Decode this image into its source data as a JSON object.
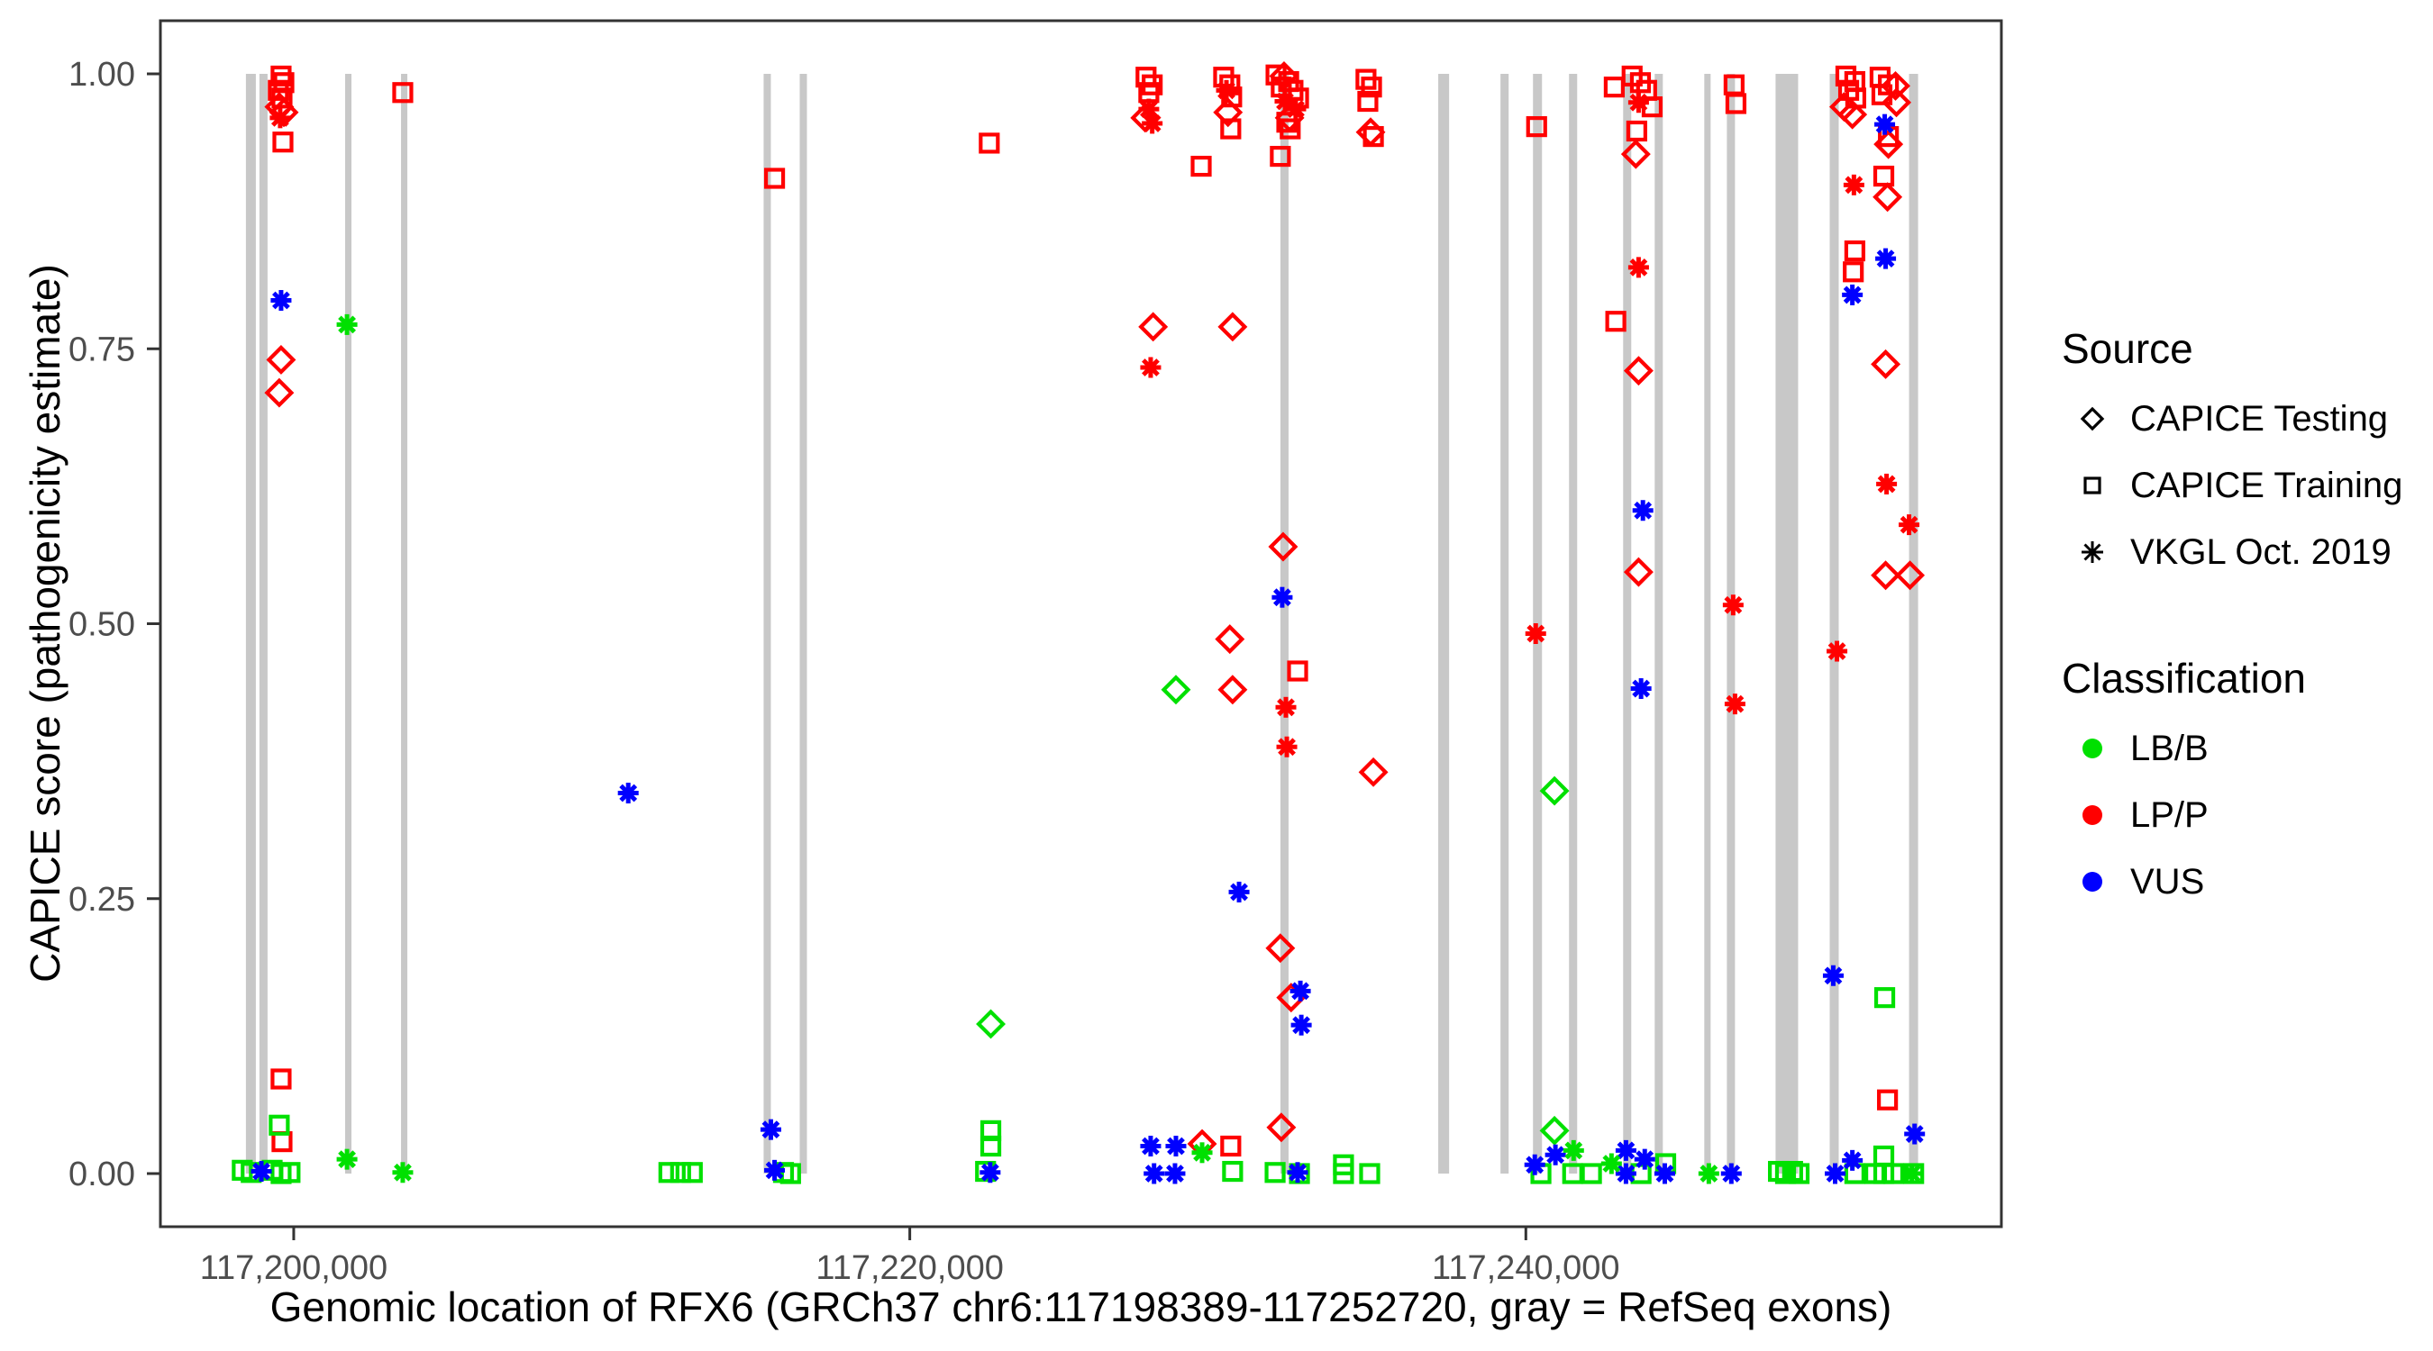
{
  "figure": {
    "x_axis_title": "Genomic location of RFX6 (GRCh37 chr6:117198389-117252720, gray = RefSeq exons)",
    "y_axis_title": "CAPICE score (pathogenicity estimate)"
  },
  "legend": {
    "source": {
      "title": "Source",
      "items": [
        {
          "label": "CAPICE Testing",
          "shape": "diamond-icon"
        },
        {
          "label": "CAPICE Training",
          "shape": "square-icon"
        },
        {
          "label": "VKGL Oct. 2019",
          "shape": "asterisk-icon"
        }
      ]
    },
    "classification": {
      "title": "Classification",
      "items": [
        {
          "label": "LB/B",
          "color": "#00E000"
        },
        {
          "label": "LP/P",
          "color": "#FF0000"
        },
        {
          "label": "VUS",
          "color": "#0000FF"
        }
      ]
    }
  },
  "chart_data": {
    "type": "scatter",
    "title": "",
    "xlabel": "Genomic location of RFX6 (GRCh37 chr6:117198389-117252720, gray = RefSeq exons)",
    "ylabel": "CAPICE score (pathogenicity estimate)",
    "x_domain": [
      117195672,
      117255437
    ],
    "y_domain": [
      0,
      1
    ],
    "x_ticks": [
      {
        "value": 117200000,
        "label": "117,200,000"
      },
      {
        "value": 117220000,
        "label": "117,220,000"
      },
      {
        "value": 117240000,
        "label": "117,240,000"
      }
    ],
    "y_ticks": [
      {
        "value": 0.0,
        "label": "0.00"
      },
      {
        "value": 0.25,
        "label": "0.25"
      },
      {
        "value": 0.5,
        "label": "0.50"
      },
      {
        "value": 0.75,
        "label": "0.75"
      },
      {
        "value": 1.0,
        "label": "1.00"
      }
    ],
    "grid": false,
    "legend_position": "right",
    "class_colors": {
      "LB/B": "#00E000",
      "LP/P": "#FF0000",
      "VUS": "#0000FF"
    },
    "exon_color": "#C8C8C8",
    "exons": [
      [
        117198448,
        117198770
      ],
      [
        117198887,
        117199151
      ],
      [
        117201669,
        117201874
      ],
      [
        117203484,
        117203689
      ],
      [
        117215255,
        117215490
      ],
      [
        117216427,
        117216661
      ],
      [
        117232032,
        117232296
      ],
      [
        117237156,
        117237508
      ],
      [
        117239177,
        117239441
      ],
      [
        117240231,
        117240524
      ],
      [
        117241402,
        117241666
      ],
      [
        117243158,
        117243422
      ],
      [
        117244183,
        117244447
      ],
      [
        117245793,
        117245998
      ],
      [
        117246526,
        117246789
      ],
      [
        117248107,
        117248839
      ],
      [
        117249864,
        117250157
      ],
      [
        117252440,
        117252733
      ]
    ],
    "series": [
      {
        "name": "CAPICE Training",
        "shape": "square",
        "points": [
          [
            117199590,
            0.998,
            "LP/P"
          ],
          [
            117199680,
            0.992,
            "LP/P"
          ],
          [
            117199500,
            0.985,
            "LP/P"
          ],
          [
            117199620,
            0.978,
            "LP/P"
          ],
          [
            117199650,
            0.938,
            "LP/P"
          ],
          [
            117199590,
            0.086,
            "LP/P"
          ],
          [
            117199620,
            0.029,
            "LP/P"
          ],
          [
            117203540,
            0.983,
            "LP/P"
          ],
          [
            117215610,
            0.905,
            "LP/P"
          ],
          [
            117222580,
            0.937,
            "LP/P"
          ],
          [
            117227670,
            0.997,
            "LP/P"
          ],
          [
            117227870,
            0.99,
            "LP/P"
          ],
          [
            117227760,
            0.983,
            "LP/P"
          ],
          [
            117229460,
            0.916,
            "LP/P"
          ],
          [
            117230190,
            0.997,
            "LP/P"
          ],
          [
            117230390,
            0.99,
            "LP/P"
          ],
          [
            117230450,
            0.979,
            "LP/P"
          ],
          [
            117230420,
            0.95,
            "LP/P"
          ],
          [
            117230420,
            0.025,
            "LP/P"
          ],
          [
            117231890,
            0.999,
            "LP/P"
          ],
          [
            117232300,
            0.993,
            "LP/P"
          ],
          [
            117232060,
            0.988,
            "LP/P"
          ],
          [
            117232440,
            0.985,
            "LP/P"
          ],
          [
            117232620,
            0.978,
            "LP/P"
          ],
          [
            117232240,
            0.956,
            "LP/P"
          ],
          [
            117232350,
            0.95,
            "LP/P"
          ],
          [
            117232030,
            0.925,
            "LP/P"
          ],
          [
            117232590,
            0.457,
            "LP/P"
          ],
          [
            117234810,
            0.995,
            "LP/P"
          ],
          [
            117234990,
            0.988,
            "LP/P"
          ],
          [
            117234870,
            0.975,
            "LP/P"
          ],
          [
            117235050,
            0.943,
            "LP/P"
          ],
          [
            117240350,
            0.952,
            "LP/P"
          ],
          [
            117242870,
            0.988,
            "LP/P"
          ],
          [
            117243450,
            0.998,
            "LP/P"
          ],
          [
            117243720,
            0.992,
            "LP/P"
          ],
          [
            117243920,
            0.985,
            "LP/P"
          ],
          [
            117244100,
            0.97,
            "LP/P"
          ],
          [
            117243600,
            0.948,
            "LP/P"
          ],
          [
            117242920,
            0.775,
            "LP/P"
          ],
          [
            117246760,
            0.99,
            "LP/P"
          ],
          [
            117246820,
            0.973,
            "LP/P"
          ],
          [
            117250390,
            0.998,
            "LP/P"
          ],
          [
            117250680,
            0.993,
            "LP/P"
          ],
          [
            117250480,
            0.985,
            "LP/P"
          ],
          [
            117250710,
            0.978,
            "LP/P"
          ],
          [
            117250680,
            0.839,
            "LP/P"
          ],
          [
            117250630,
            0.82,
            "LP/P"
          ],
          [
            117251500,
            0.997,
            "LP/P"
          ],
          [
            117251770,
            0.99,
            "LP/P"
          ],
          [
            117251560,
            0.981,
            "LP/P"
          ],
          [
            117251770,
            0.943,
            "LP/P"
          ],
          [
            117251620,
            0.907,
            "LP/P"
          ],
          [
            117251740,
            0.067,
            "LP/P"
          ],
          [
            117199530,
            0.044,
            "LB/B"
          ],
          [
            117198330,
            0.003,
            "LB/B"
          ],
          [
            117198620,
            0.001,
            "LB/B"
          ],
          [
            117199300,
            0.003,
            "LB/B"
          ],
          [
            117199590,
            0.0,
            "LB/B"
          ],
          [
            117199880,
            0.001,
            "LB/B"
          ],
          [
            117212180,
            0.001,
            "LB/B"
          ],
          [
            117212560,
            0.001,
            "LB/B"
          ],
          [
            117212940,
            0.001,
            "LB/B"
          ],
          [
            117215900,
            0.001,
            "LB/B"
          ],
          [
            117216130,
            0.0,
            "LB/B"
          ],
          [
            117222630,
            0.039,
            "LB/B"
          ],
          [
            117222630,
            0.025,
            "LB/B"
          ],
          [
            117222460,
            0.002,
            "LB/B"
          ],
          [
            117230480,
            0.002,
            "LB/B"
          ],
          [
            117231860,
            0.001,
            "LB/B"
          ],
          [
            117232650,
            0.0,
            "LB/B"
          ],
          [
            117234080,
            0.008,
            "LB/B"
          ],
          [
            117234080,
            0.0,
            "LB/B"
          ],
          [
            117234930,
            0.0,
            "LB/B"
          ],
          [
            117240490,
            0.0,
            "LB/B"
          ],
          [
            117241520,
            0.0,
            "LB/B"
          ],
          [
            117242130,
            0.0,
            "LB/B"
          ],
          [
            117243740,
            0.0,
            "LB/B"
          ],
          [
            117244540,
            0.009,
            "LB/B"
          ],
          [
            117248200,
            0.002,
            "LB/B"
          ],
          [
            117248430,
            0.0,
            "LB/B"
          ],
          [
            117248660,
            0.002,
            "LB/B"
          ],
          [
            117248870,
            0.0,
            "LB/B"
          ],
          [
            117250680,
            0.0,
            "LB/B"
          ],
          [
            117251620,
            0.016,
            "LB/B"
          ],
          [
            117251620,
            0.0,
            "LB/B"
          ],
          [
            117251330,
            0.0,
            "LB/B"
          ],
          [
            117251940,
            0.0,
            "LB/B"
          ],
          [
            117252590,
            0.0,
            "LB/B"
          ],
          [
            117251650,
            0.16,
            "LB/B"
          ]
        ]
      },
      {
        "name": "CAPICE Testing",
        "shape": "diamond",
        "points": [
          [
            117199530,
            0.97,
            "LP/P"
          ],
          [
            117199680,
            0.965,
            "LP/P"
          ],
          [
            117199590,
            0.74,
            "LP/P"
          ],
          [
            117199530,
            0.71,
            "LP/P"
          ],
          [
            117227640,
            0.96,
            "LP/P"
          ],
          [
            117227900,
            0.77,
            "LP/P"
          ],
          [
            117229490,
            0.027,
            "LP/P"
          ],
          [
            117230330,
            0.965,
            "LP/P"
          ],
          [
            117230480,
            0.77,
            "LP/P"
          ],
          [
            117230390,
            0.486,
            "LP/P"
          ],
          [
            117230480,
            0.44,
            "LP/P"
          ],
          [
            117232150,
            0.998,
            "LP/P"
          ],
          [
            117232330,
            0.96,
            "LP/P"
          ],
          [
            117232120,
            0.57,
            "LP/P"
          ],
          [
            117232030,
            0.205,
            "LP/P"
          ],
          [
            117232380,
            0.16,
            "LP/P"
          ],
          [
            117232060,
            0.042,
            "LP/P"
          ],
          [
            117234960,
            0.947,
            "LP/P"
          ],
          [
            117235050,
            0.365,
            "LP/P"
          ],
          [
            117243570,
            0.927,
            "LP/P"
          ],
          [
            117243660,
            0.73,
            "LP/P"
          ],
          [
            117243660,
            0.547,
            "LP/P"
          ],
          [
            117250600,
            0.963,
            "LP/P"
          ],
          [
            117250330,
            0.97,
            "LP/P"
          ],
          [
            117252000,
            0.989,
            "LP/P"
          ],
          [
            117252030,
            0.974,
            "LP/P"
          ],
          [
            117251770,
            0.936,
            "LP/P"
          ],
          [
            117251740,
            0.888,
            "LP/P"
          ],
          [
            117251680,
            0.736,
            "LP/P"
          ],
          [
            117251680,
            0.544,
            "LP/P"
          ],
          [
            117252470,
            0.544,
            "LP/P"
          ],
          [
            117228640,
            0.44,
            "LB/B"
          ],
          [
            117222630,
            0.136,
            "LB/B"
          ],
          [
            117240930,
            0.348,
            "LB/B"
          ],
          [
            117240930,
            0.039,
            "LB/B"
          ]
        ]
      },
      {
        "name": "VKGL Oct. 2019",
        "shape": "asterisk",
        "points": [
          [
            117199560,
            0.96,
            "LP/P"
          ],
          [
            117227760,
            0.968,
            "LP/P"
          ],
          [
            117227870,
            0.955,
            "LP/P"
          ],
          [
            117227820,
            0.733,
            "LP/P"
          ],
          [
            117230280,
            0.985,
            "LP/P"
          ],
          [
            117232180,
            0.975,
            "LP/P"
          ],
          [
            117232530,
            0.968,
            "LP/P"
          ],
          [
            117232210,
            0.424,
            "LP/P"
          ],
          [
            117232240,
            0.388,
            "LP/P"
          ],
          [
            117243660,
            0.974,
            "LP/P"
          ],
          [
            117243660,
            0.824,
            "LP/P"
          ],
          [
            117240320,
            0.491,
            "LP/P"
          ],
          [
            117246730,
            0.517,
            "LP/P"
          ],
          [
            117246790,
            0.427,
            "LP/P"
          ],
          [
            117250650,
            0.899,
            "LP/P"
          ],
          [
            117251710,
            0.627,
            "LP/P"
          ],
          [
            117252440,
            0.59,
            "LP/P"
          ],
          [
            117250100,
            0.475,
            "LP/P"
          ],
          [
            117199590,
            0.794,
            "VUS"
          ],
          [
            117198950,
            0.002,
            "VUS"
          ],
          [
            117210860,
            0.346,
            "VUS"
          ],
          [
            117215490,
            0.04,
            "VUS"
          ],
          [
            117215610,
            0.003,
            "VUS"
          ],
          [
            117222610,
            0.001,
            "VUS"
          ],
          [
            117227820,
            0.025,
            "VUS"
          ],
          [
            117228640,
            0.025,
            "VUS"
          ],
          [
            117227930,
            0.0,
            "VUS"
          ],
          [
            117228610,
            0.0,
            "VUS"
          ],
          [
            117230690,
            0.256,
            "VUS"
          ],
          [
            117232090,
            0.524,
            "VUS"
          ],
          [
            117232680,
            0.166,
            "VUS"
          ],
          [
            117232710,
            0.135,
            "VUS"
          ],
          [
            117232590,
            0.001,
            "VUS"
          ],
          [
            117240290,
            0.008,
            "VUS"
          ],
          [
            117240960,
            0.017,
            "VUS"
          ],
          [
            117243250,
            0.021,
            "VUS"
          ],
          [
            117243860,
            0.013,
            "VUS"
          ],
          [
            117243250,
            0.0,
            "VUS"
          ],
          [
            117244510,
            0.0,
            "VUS"
          ],
          [
            117243800,
            0.603,
            "VUS"
          ],
          [
            117243740,
            0.441,
            "VUS"
          ],
          [
            117246670,
            0.0,
            "VUS"
          ],
          [
            117251650,
            0.954,
            "VUS"
          ],
          [
            117251680,
            0.832,
            "VUS"
          ],
          [
            117250600,
            0.799,
            "VUS"
          ],
          [
            117249980,
            0.18,
            "VUS"
          ],
          [
            117252620,
            0.036,
            "VUS"
          ],
          [
            117250600,
            0.012,
            "VUS"
          ],
          [
            117250040,
            0.0,
            "VUS"
          ],
          [
            117201730,
            0.772,
            "LB/B"
          ],
          [
            117201730,
            0.013,
            "LB/B"
          ],
          [
            117203540,
            0.001,
            "LB/B"
          ],
          [
            117229490,
            0.019,
            "LB/B"
          ],
          [
            117241550,
            0.021,
            "LB/B"
          ],
          [
            117242780,
            0.009,
            "LB/B"
          ],
          [
            117245940,
            0.0,
            "LB/B"
          ],
          [
            117252530,
            0.0,
            "LB/B"
          ]
        ]
      }
    ]
  }
}
